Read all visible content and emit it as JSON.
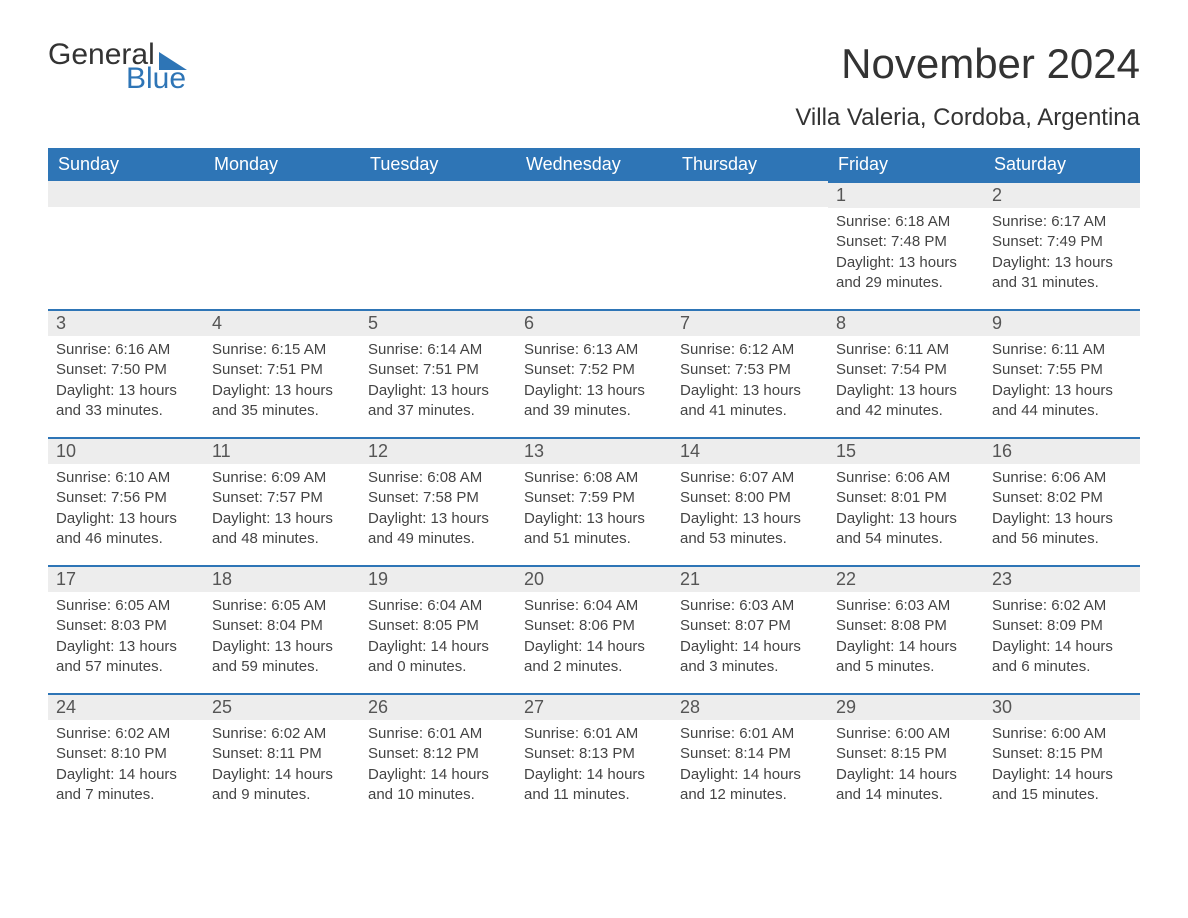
{
  "logo": {
    "general": "General",
    "blue": "Blue"
  },
  "title": "November 2024",
  "subtitle": "Villa Valeria, Cordoba, Argentina",
  "colors": {
    "header_bg": "#2e75b6",
    "header_text": "#ffffff",
    "day_num_bg": "#ededed",
    "day_border": "#2e75b6",
    "text": "#444444",
    "title_text": "#333333"
  },
  "fonts": {
    "family": "Arial",
    "title_size": 42,
    "subtitle_size": 24,
    "header_size": 18,
    "daynum_size": 18,
    "body_size": 15
  },
  "layout": {
    "columns": 7,
    "rows": 5,
    "first_day_column": 5
  },
  "weekdays": [
    "Sunday",
    "Monday",
    "Tuesday",
    "Wednesday",
    "Thursday",
    "Friday",
    "Saturday"
  ],
  "days": [
    {
      "n": 1,
      "sunrise": "6:18 AM",
      "sunset": "7:48 PM",
      "dl_h": 13,
      "dl_m": 29
    },
    {
      "n": 2,
      "sunrise": "6:17 AM",
      "sunset": "7:49 PM",
      "dl_h": 13,
      "dl_m": 31
    },
    {
      "n": 3,
      "sunrise": "6:16 AM",
      "sunset": "7:50 PM",
      "dl_h": 13,
      "dl_m": 33
    },
    {
      "n": 4,
      "sunrise": "6:15 AM",
      "sunset": "7:51 PM",
      "dl_h": 13,
      "dl_m": 35
    },
    {
      "n": 5,
      "sunrise": "6:14 AM",
      "sunset": "7:51 PM",
      "dl_h": 13,
      "dl_m": 37
    },
    {
      "n": 6,
      "sunrise": "6:13 AM",
      "sunset": "7:52 PM",
      "dl_h": 13,
      "dl_m": 39
    },
    {
      "n": 7,
      "sunrise": "6:12 AM",
      "sunset": "7:53 PM",
      "dl_h": 13,
      "dl_m": 41
    },
    {
      "n": 8,
      "sunrise": "6:11 AM",
      "sunset": "7:54 PM",
      "dl_h": 13,
      "dl_m": 42
    },
    {
      "n": 9,
      "sunrise": "6:11 AM",
      "sunset": "7:55 PM",
      "dl_h": 13,
      "dl_m": 44
    },
    {
      "n": 10,
      "sunrise": "6:10 AM",
      "sunset": "7:56 PM",
      "dl_h": 13,
      "dl_m": 46
    },
    {
      "n": 11,
      "sunrise": "6:09 AM",
      "sunset": "7:57 PM",
      "dl_h": 13,
      "dl_m": 48
    },
    {
      "n": 12,
      "sunrise": "6:08 AM",
      "sunset": "7:58 PM",
      "dl_h": 13,
      "dl_m": 49
    },
    {
      "n": 13,
      "sunrise": "6:08 AM",
      "sunset": "7:59 PM",
      "dl_h": 13,
      "dl_m": 51
    },
    {
      "n": 14,
      "sunrise": "6:07 AM",
      "sunset": "8:00 PM",
      "dl_h": 13,
      "dl_m": 53
    },
    {
      "n": 15,
      "sunrise": "6:06 AM",
      "sunset": "8:01 PM",
      "dl_h": 13,
      "dl_m": 54
    },
    {
      "n": 16,
      "sunrise": "6:06 AM",
      "sunset": "8:02 PM",
      "dl_h": 13,
      "dl_m": 56
    },
    {
      "n": 17,
      "sunrise": "6:05 AM",
      "sunset": "8:03 PM",
      "dl_h": 13,
      "dl_m": 57
    },
    {
      "n": 18,
      "sunrise": "6:05 AM",
      "sunset": "8:04 PM",
      "dl_h": 13,
      "dl_m": 59
    },
    {
      "n": 19,
      "sunrise": "6:04 AM",
      "sunset": "8:05 PM",
      "dl_h": 14,
      "dl_m": 0
    },
    {
      "n": 20,
      "sunrise": "6:04 AM",
      "sunset": "8:06 PM",
      "dl_h": 14,
      "dl_m": 2
    },
    {
      "n": 21,
      "sunrise": "6:03 AM",
      "sunset": "8:07 PM",
      "dl_h": 14,
      "dl_m": 3
    },
    {
      "n": 22,
      "sunrise": "6:03 AM",
      "sunset": "8:08 PM",
      "dl_h": 14,
      "dl_m": 5
    },
    {
      "n": 23,
      "sunrise": "6:02 AM",
      "sunset": "8:09 PM",
      "dl_h": 14,
      "dl_m": 6
    },
    {
      "n": 24,
      "sunrise": "6:02 AM",
      "sunset": "8:10 PM",
      "dl_h": 14,
      "dl_m": 7
    },
    {
      "n": 25,
      "sunrise": "6:02 AM",
      "sunset": "8:11 PM",
      "dl_h": 14,
      "dl_m": 9
    },
    {
      "n": 26,
      "sunrise": "6:01 AM",
      "sunset": "8:12 PM",
      "dl_h": 14,
      "dl_m": 10
    },
    {
      "n": 27,
      "sunrise": "6:01 AM",
      "sunset": "8:13 PM",
      "dl_h": 14,
      "dl_m": 11
    },
    {
      "n": 28,
      "sunrise": "6:01 AM",
      "sunset": "8:14 PM",
      "dl_h": 14,
      "dl_m": 12
    },
    {
      "n": 29,
      "sunrise": "6:00 AM",
      "sunset": "8:15 PM",
      "dl_h": 14,
      "dl_m": 14
    },
    {
      "n": 30,
      "sunrise": "6:00 AM",
      "sunset": "8:15 PM",
      "dl_h": 14,
      "dl_m": 15
    }
  ],
  "labels": {
    "sunrise": "Sunrise:",
    "sunset": "Sunset:",
    "daylight_prefix": "Daylight:",
    "hours_word": "hours",
    "and_word": "and",
    "minutes_word": "minutes."
  }
}
